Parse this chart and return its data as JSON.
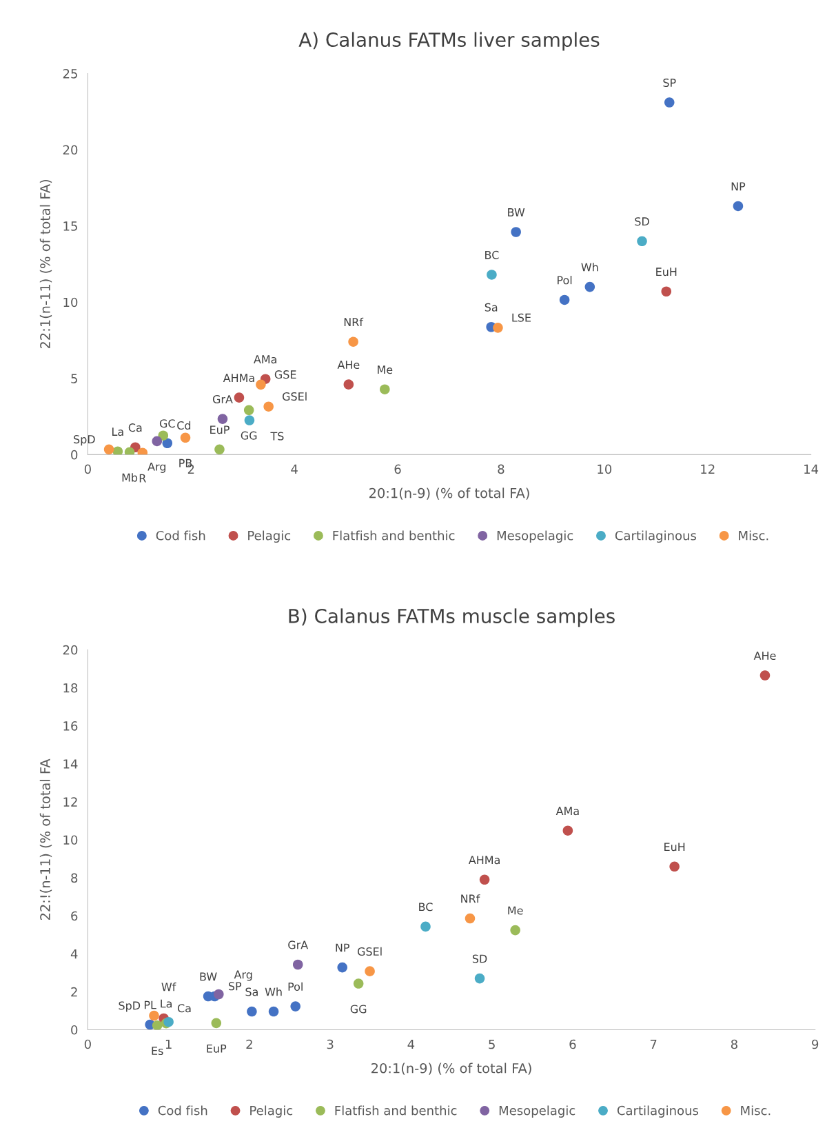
{
  "chart_data": [
    {
      "type": "scatter",
      "title": "A) Calanus FATMs liver samples",
      "xlabel": "20:1(n-9) (% of total FA)",
      "ylabel": "22:1(n-11) (% of total FA)",
      "xlim": [
        0,
        14
      ],
      "xticks": [
        0,
        2,
        4,
        6,
        8,
        10,
        12,
        14
      ],
      "ylim": [
        0,
        25
      ],
      "yticks": [
        0,
        5,
        10,
        15,
        20,
        25
      ],
      "grid": false,
      "legend": "bottom",
      "marker": "circle",
      "series": [
        {
          "name": "Cod fish",
          "color": "#4472c4",
          "x": [
            11.26,
            12.59,
            8.29,
            9.72,
            9.23,
            7.81,
            1.54
          ],
          "values": [
            23.1,
            16.3,
            14.6,
            11.0,
            10.15,
            8.37,
            0.75
          ],
          "value_labels": [
            "SP",
            "NP",
            "BW",
            "Wh",
            "Pol",
            "Sa",
            "GC"
          ]
        },
        {
          "name": "Pelagic",
          "color": "#c0504d",
          "x": [
            11.2,
            5.05,
            3.44,
            2.93,
            0.92
          ],
          "values": [
            10.7,
            4.6,
            4.96,
            3.74,
            0.48
          ],
          "value_labels": [
            "EuH",
            "AHe",
            "AMa",
            "AHMa",
            "Ca"
          ]
        },
        {
          "name": "Flatfish and benthic",
          "color": "#9bbb59",
          "x": [
            5.75,
            3.12,
            2.55,
            1.46,
            0.58,
            0.81
          ],
          "values": [
            4.28,
            2.92,
            0.34,
            1.25,
            0.21,
            0.16
          ],
          "value_labels": [
            "Me",
            "GG",
            "EuP",
            "Cd",
            "La",
            "Mb"
          ]
        },
        {
          "name": "Mesopelagic",
          "color": "#8064a2",
          "x": [
            2.61,
            1.34
          ],
          "values": [
            2.34,
            0.88
          ],
          "value_labels": [
            "GrA",
            "Arg"
          ]
        },
        {
          "name": "Cartilaginous",
          "color": "#4bacc6",
          "x": [
            10.73,
            7.82,
            3.13
          ],
          "values": [
            14.0,
            11.8,
            2.25
          ],
          "value_labels": [
            "SD",
            "BC",
            "TS"
          ]
        },
        {
          "name": "Misc.",
          "color": "#f79646",
          "x": [
            5.14,
            7.94,
            3.35,
            3.5,
            1.89,
            0.41,
            1.06
          ],
          "values": [
            7.4,
            8.32,
            4.59,
            3.15,
            1.11,
            0.34,
            0.12
          ],
          "value_labels": [
            "NRf",
            "LSE",
            "GSE",
            "GSEl",
            "PB",
            "SpD",
            "R"
          ]
        }
      ]
    },
    {
      "type": "scatter",
      "title": "B) Calanus FATMs muscle samples",
      "xlabel": "20:1(n-9) (% of total FA)",
      "ylabel": "22:!(n-11) (% of total FA",
      "xlim": [
        0,
        9
      ],
      "xticks": [
        0,
        1,
        2,
        3,
        4,
        5,
        6,
        7,
        8,
        9
      ],
      "ylim": [
        0,
        20
      ],
      "yticks": [
        0,
        2,
        4,
        6,
        8,
        10,
        12,
        14,
        16,
        18,
        20
      ],
      "grid": false,
      "legend": "bottom",
      "marker": "circle",
      "series": [
        {
          "name": "Cod fish",
          "color": "#4472c4",
          "x": [
            3.15,
            2.57,
            2.3,
            2.03,
            1.49,
            1.57,
            0.77
          ],
          "values": [
            3.28,
            1.23,
            0.96,
            0.96,
            1.76,
            1.76,
            0.27
          ],
          "value_labels": [
            "NP",
            "Pol",
            "Wh",
            "Sa",
            "BW",
            "SP",
            "PL"
          ]
        },
        {
          "name": "Pelagic",
          "color": "#c0504d",
          "x": [
            8.38,
            5.94,
            7.26,
            4.91,
            0.94
          ],
          "values": [
            18.65,
            10.48,
            8.59,
            7.9,
            0.6
          ],
          "value_labels": [
            "AHe",
            "AMa",
            "EuH",
            "AHMa",
            "Ca"
          ]
        },
        {
          "name": "Flatfish and benthic",
          "color": "#9bbb59",
          "x": [
            5.29,
            3.35,
            1.59,
            0.86,
            0.97
          ],
          "values": [
            5.24,
            2.43,
            0.35,
            0.23,
            0.34
          ],
          "value_labels": [
            "Me",
            "GG",
            "EuP",
            "Es",
            "La"
          ]
        },
        {
          "name": "Mesopelagic",
          "color": "#8064a2",
          "x": [
            2.6,
            1.62
          ],
          "values": [
            3.43,
            1.87
          ],
          "value_labels": [
            "GrA",
            "Arg"
          ]
        },
        {
          "name": "Cartilaginous",
          "color": "#4bacc6",
          "x": [
            4.18,
            4.85,
            1.0
          ],
          "values": [
            5.43,
            2.7,
            0.41
          ],
          "value_labels": [
            "BC",
            "SD",
            "Wf"
          ]
        },
        {
          "name": "Misc.",
          "color": "#f79646",
          "x": [
            4.73,
            3.49,
            0.82
          ],
          "values": [
            5.86,
            3.08,
            0.74
          ],
          "value_labels": [
            "NRf",
            "GSEl",
            "SpD"
          ]
        }
      ]
    }
  ]
}
